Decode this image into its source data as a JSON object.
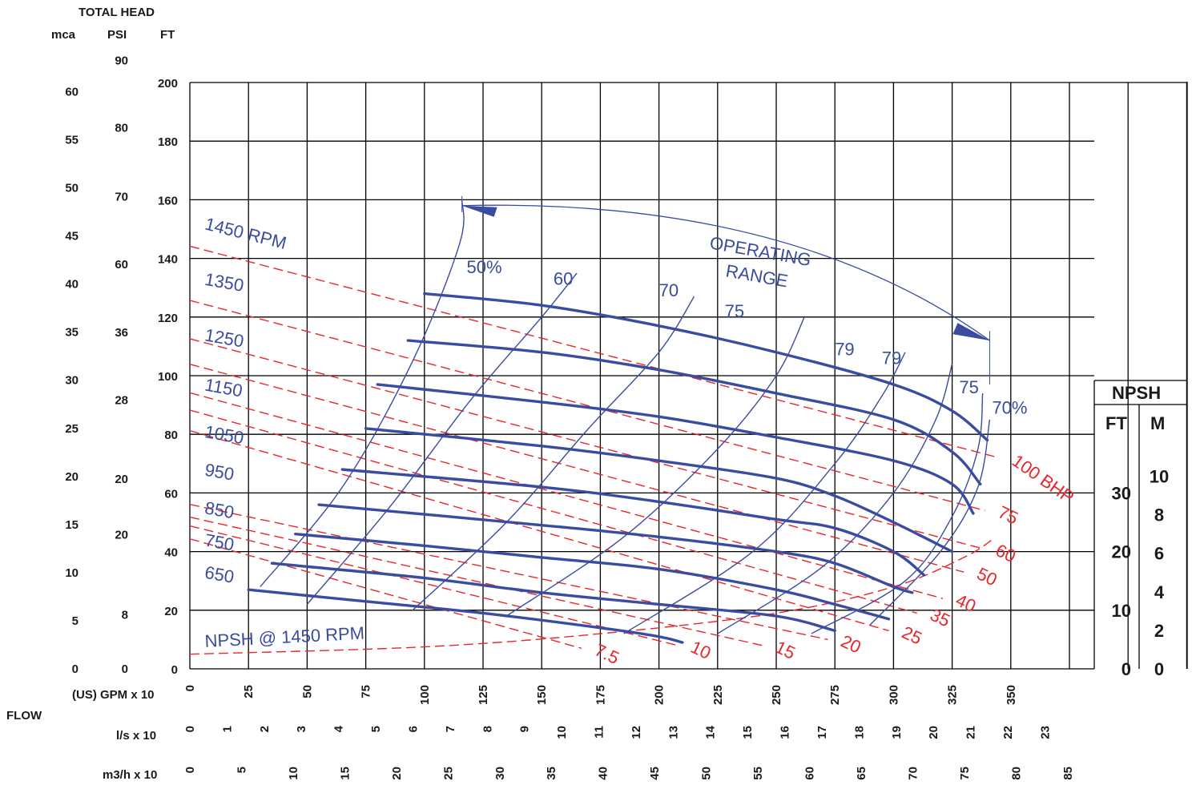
{
  "labels": {
    "total_head": "TOTAL HEAD",
    "mca": "mca",
    "psi": "PSI",
    "ft": "FT",
    "gpm": "(US) GPM x 10",
    "flow": "FLOW",
    "ls": "l/s x 10",
    "m3h": "m3/h x 10",
    "npsh": "NPSH",
    "npsh_ft": "FT",
    "npsh_m": "M",
    "operating_range_1": "OPERATING",
    "operating_range_2": "RANGE",
    "npsh_curve_label": "NPSH @ 1450 RPM"
  },
  "colors": {
    "grid": "#000000",
    "head_curves": "#3a4ca0",
    "power_curves": "#e8262b",
    "text": "#1a1a1a"
  },
  "chart_data": {
    "type": "line",
    "title": "",
    "xlabel": "(US) GPM x 10",
    "ylabel": "TOTAL HEAD FT",
    "xlim": [
      0,
      425
    ],
    "ylim": [
      0,
      200
    ],
    "x_ticks": [
      "0",
      "25",
      "50",
      "75",
      "100",
      "125",
      "150",
      "175",
      "200",
      "225",
      "250",
      "275",
      "300",
      "325",
      "350"
    ],
    "ft_ticks": [
      "0",
      "20",
      "40",
      "60",
      "80",
      "100",
      "120",
      "140",
      "160",
      "180",
      "200"
    ],
    "mca_ticks": [
      "0",
      "5",
      "10",
      "15",
      "20",
      "25",
      "30",
      "35",
      "40",
      "45",
      "50",
      "55",
      "60"
    ],
    "psi_ticks": [
      {
        "value": 0,
        "label": "0"
      },
      {
        "value": 18.5,
        "label": "8"
      },
      {
        "value": 45.8,
        "label": "20"
      },
      {
        "value": 64.7,
        "label": "20"
      },
      {
        "value": 91.7,
        "label": "28"
      },
      {
        "value": 114.7,
        "label": "36"
      },
      {
        "value": 138,
        "label": "60"
      },
      {
        "value": 161,
        "label": "70"
      },
      {
        "value": 184.5,
        "label": "80"
      },
      {
        "value": 207.5,
        "label": "90"
      }
    ],
    "ls_ticks": [
      "0",
      "1",
      "2",
      "3",
      "4",
      "5",
      "6",
      "7",
      "8",
      "9",
      "10",
      "11",
      "12",
      "13",
      "14",
      "15",
      "16",
      "17",
      "18",
      "19",
      "20",
      "21",
      "22",
      "23"
    ],
    "m3h_ticks": [
      "0",
      "5",
      "10",
      "15",
      "20",
      "25",
      "30",
      "35",
      "40",
      "45",
      "50",
      "55",
      "60",
      "65",
      "70",
      "75",
      "80",
      "85"
    ],
    "npsh_ft_ticks": [
      "0",
      "10",
      "20",
      "30"
    ],
    "npsh_m_ticks": [
      "0",
      "2",
      "4",
      "6",
      "8",
      "10"
    ],
    "speed_series": [
      {
        "name": "1450 RPM",
        "label_at": [
          6,
          150
        ],
        "points": [
          [
            100,
            128
          ],
          [
            150,
            124
          ],
          [
            200,
            117
          ],
          [
            250,
            108
          ],
          [
            300,
            97
          ],
          [
            325,
            88
          ],
          [
            340,
            78
          ]
        ]
      },
      {
        "name": "1350",
        "label_at": [
          6,
          131
        ],
        "points": [
          [
            93,
            112
          ],
          [
            150,
            108
          ],
          [
            200,
            102
          ],
          [
            250,
            94
          ],
          [
            300,
            85
          ],
          [
            325,
            74
          ],
          [
            337,
            63
          ]
        ]
      },
      {
        "name": "1250",
        "label_at": [
          6,
          112
        ],
        "points": [
          [
            80,
            97
          ],
          [
            150,
            91
          ],
          [
            200,
            86
          ],
          [
            250,
            79
          ],
          [
            300,
            71
          ],
          [
            325,
            63
          ],
          [
            334,
            53
          ]
        ]
      },
      {
        "name": "1150",
        "label_at": [
          6,
          95
        ],
        "points": [
          [
            75,
            82
          ],
          [
            150,
            76
          ],
          [
            200,
            71
          ],
          [
            250,
            65
          ],
          [
            275,
            59
          ],
          [
            300,
            50
          ],
          [
            325,
            40
          ]
        ]
      },
      {
        "name": "1050",
        "label_at": [
          6,
          79
        ],
        "points": [
          [
            65,
            68
          ],
          [
            150,
            62
          ],
          [
            200,
            57
          ],
          [
            250,
            51
          ],
          [
            275,
            48
          ],
          [
            300,
            40
          ],
          [
            313,
            32
          ]
        ]
      },
      {
        "name": "950",
        "label_at": [
          6,
          66
        ],
        "points": [
          [
            55,
            56
          ],
          [
            150,
            49
          ],
          [
            200,
            45
          ],
          [
            250,
            40
          ],
          [
            275,
            36
          ],
          [
            300,
            28
          ],
          [
            308,
            26
          ]
        ]
      },
      {
        "name": "850",
        "label_at": [
          6,
          53
        ],
        "points": [
          [
            45,
            46
          ],
          [
            100,
            42
          ],
          [
            150,
            38
          ],
          [
            200,
            34
          ],
          [
            250,
            27
          ],
          [
            275,
            22
          ],
          [
            298,
            17
          ]
        ]
      },
      {
        "name": "750",
        "label_at": [
          6,
          42
        ],
        "points": [
          [
            35,
            36
          ],
          [
            100,
            31
          ],
          [
            150,
            26
          ],
          [
            200,
            22
          ],
          [
            250,
            18
          ],
          [
            275,
            13
          ]
        ]
      },
      {
        "name": "650",
        "label_at": [
          6,
          31
        ],
        "points": [
          [
            25,
            27
          ],
          [
            75,
            23
          ],
          [
            125,
            19
          ],
          [
            175,
            14
          ],
          [
            200,
            11
          ],
          [
            210,
            9
          ]
        ]
      }
    ],
    "efficiency_series": [
      {
        "name": "50%",
        "label_at": [
          118,
          135
        ],
        "points": [
          [
            30,
            28
          ],
          [
            65,
            62
          ],
          [
            95,
            105
          ],
          [
            115,
            145
          ],
          [
            116,
            160
          ]
        ]
      },
      {
        "name": "60",
        "label_at": [
          155,
          131
        ],
        "points": [
          [
            50,
            22
          ],
          [
            85,
            55
          ],
          [
            120,
            92
          ],
          [
            150,
            120
          ],
          [
            165,
            135
          ]
        ]
      },
      {
        "name": "70",
        "label_at": [
          200,
          127
        ],
        "points": [
          [
            95,
            20
          ],
          [
            135,
            50
          ],
          [
            170,
            82
          ],
          [
            200,
            108
          ],
          [
            215,
            127
          ]
        ]
      },
      {
        "name": "75",
        "label_at": [
          228,
          120
        ],
        "points": [
          [
            135,
            18
          ],
          [
            185,
            45
          ],
          [
            225,
            75
          ],
          [
            250,
            100
          ],
          [
            262,
            120
          ]
        ]
      },
      {
        "name": "79",
        "label_at": [
          275,
          107
        ],
        "points": [
          [
            185,
            12
          ],
          [
            240,
            40
          ],
          [
            275,
            70
          ],
          [
            295,
            93
          ],
          [
            305,
            108
          ]
        ]
      },
      {
        "name": "79",
        "label_at": [
          295,
          104
        ],
        "points": [
          [
            225,
            12
          ],
          [
            270,
            35
          ],
          [
            300,
            60
          ],
          [
            318,
            85
          ],
          [
            325,
            104
          ]
        ]
      },
      {
        "name": "75",
        "label_at": [
          328,
          94
        ],
        "points": [
          [
            265,
            12
          ],
          [
            305,
            30
          ],
          [
            325,
            52
          ],
          [
            336,
            75
          ],
          [
            338,
            94
          ]
        ]
      },
      {
        "name": "70%",
        "label_at": [
          342,
          87
        ],
        "points": [
          [
            290,
            15
          ],
          [
            320,
            40
          ],
          [
            336,
            62
          ],
          [
            341,
            85
          ]
        ]
      }
    ],
    "power_series": [
      {
        "name": "100 BHP",
        "label_at": [
          350,
          70
        ]
      },
      {
        "name": "75",
        "label_at": [
          344,
          52
        ]
      },
      {
        "name": "60",
        "label_at": [
          343,
          39
        ]
      },
      {
        "name": "50",
        "label_at": [
          335,
          31
        ]
      },
      {
        "name": "40",
        "label_at": [
          326,
          22
        ]
      },
      {
        "name": "35",
        "label_at": [
          315,
          17
        ]
      },
      {
        "name": "25",
        "label_at": [
          303,
          11
        ]
      },
      {
        "name": "20",
        "label_at": [
          277,
          8
        ]
      },
      {
        "name": "15",
        "label_at": [
          249,
          6
        ]
      },
      {
        "name": "10",
        "label_at": [
          213,
          6
        ]
      },
      {
        "name": "7.5",
        "label_at": [
          172,
          5
        ]
      }
    ],
    "npsh_curve": {
      "name": "NPSH @ 1450 RPM",
      "points": [
        [
          0,
          5
        ],
        [
          100,
          7.5
        ],
        [
          175,
          12
        ],
        [
          250,
          19
        ],
        [
          300,
          28
        ],
        [
          330,
          38
        ],
        [
          342,
          44
        ]
      ]
    },
    "operating_range": {
      "name": "OPERATING RANGE",
      "from": [
        116,
        158
      ],
      "to": [
        341,
        112
      ]
    }
  }
}
